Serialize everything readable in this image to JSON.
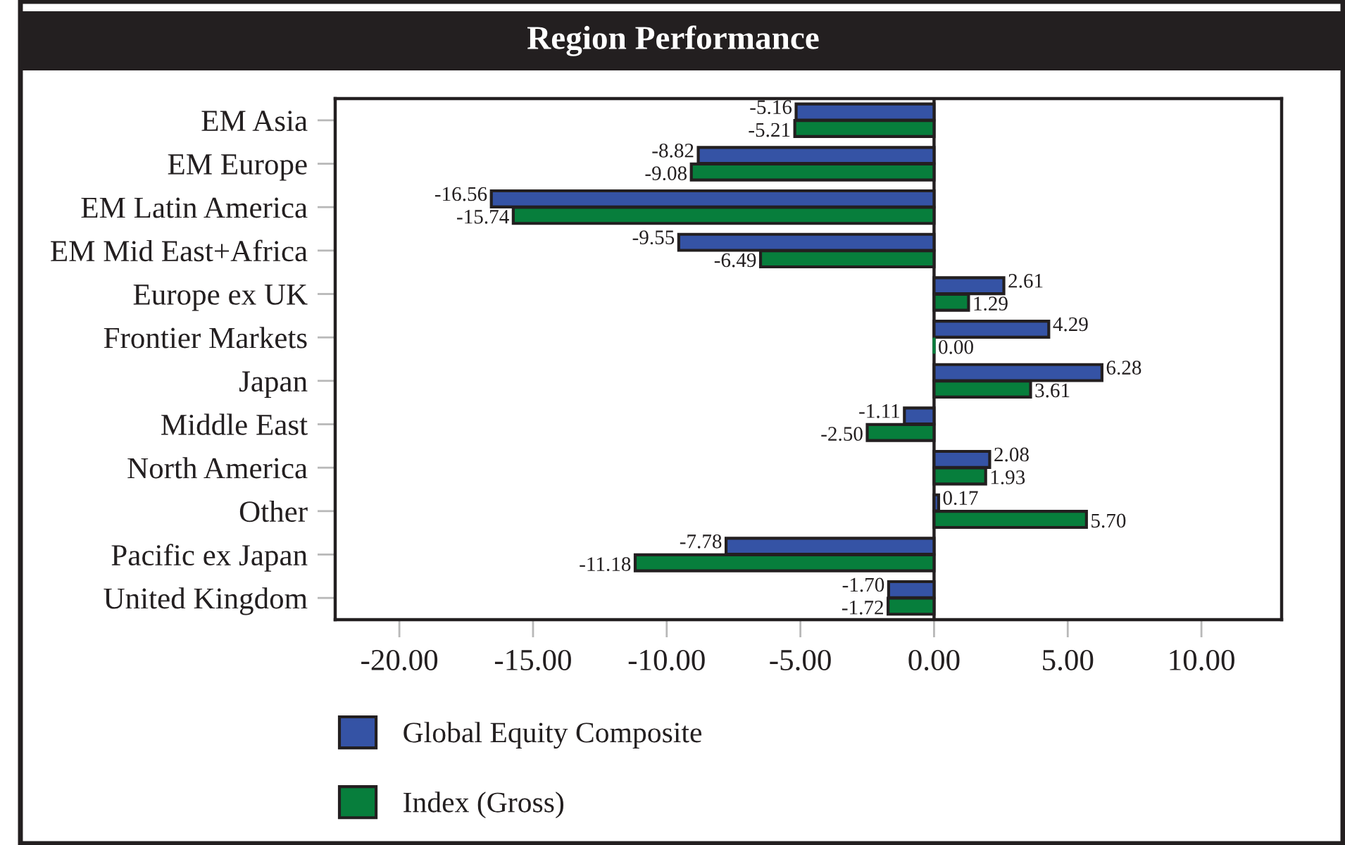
{
  "chart_data": {
    "type": "bar",
    "orientation": "horizontal",
    "title": "Region Performance",
    "categories": [
      "EM Asia",
      "EM Europe",
      "EM Latin America",
      "EM Mid East+Africa",
      "Europe ex UK",
      "Frontier Markets",
      "Japan",
      "Middle East",
      "North America",
      "Other",
      "Pacific ex Japan",
      "United Kingdom"
    ],
    "series": [
      {
        "name": "Global Equity Composite",
        "color": "#3553a5",
        "values": [
          -5.16,
          -8.82,
          -16.56,
          -9.55,
          2.61,
          4.29,
          6.28,
          -1.11,
          2.08,
          0.17,
          -7.78,
          -1.7
        ],
        "value_labels": [
          "-5.16",
          "-8.82",
          "-16.56",
          "-9.55",
          "2.61",
          "4.29",
          "6.28",
          "-1.11",
          "2.08",
          "0.17",
          "-7.78",
          "-1.70"
        ]
      },
      {
        "name": "Index (Gross)",
        "color": "#077e3c",
        "values": [
          -5.21,
          -9.08,
          -15.74,
          -6.49,
          1.29,
          0.0,
          3.61,
          -2.5,
          1.93,
          5.7,
          -11.18,
          -1.72
        ],
        "value_labels": [
          "-5.21",
          "-9.08",
          "-15.74",
          "-6.49",
          "1.29",
          "0.00",
          "3.61",
          "-2.50",
          "1.93",
          "5.70",
          "-11.18",
          "-1.72"
        ]
      }
    ],
    "xlim": [
      -22.4,
      13
    ],
    "xticks": [
      {
        "value": -20,
        "label": "-20.00"
      },
      {
        "value": -15,
        "label": "-15.00"
      },
      {
        "value": -10,
        "label": "-10.00"
      },
      {
        "value": -5,
        "label": "-5.00"
      },
      {
        "value": 0,
        "label": "0.00"
      },
      {
        "value": 5,
        "label": "5.00"
      },
      {
        "value": 10,
        "label": "10.00"
      }
    ],
    "ref_lines": [
      {
        "axis": "x",
        "value": 0,
        "color": "#231f20"
      }
    ],
    "legend": "bottom"
  }
}
